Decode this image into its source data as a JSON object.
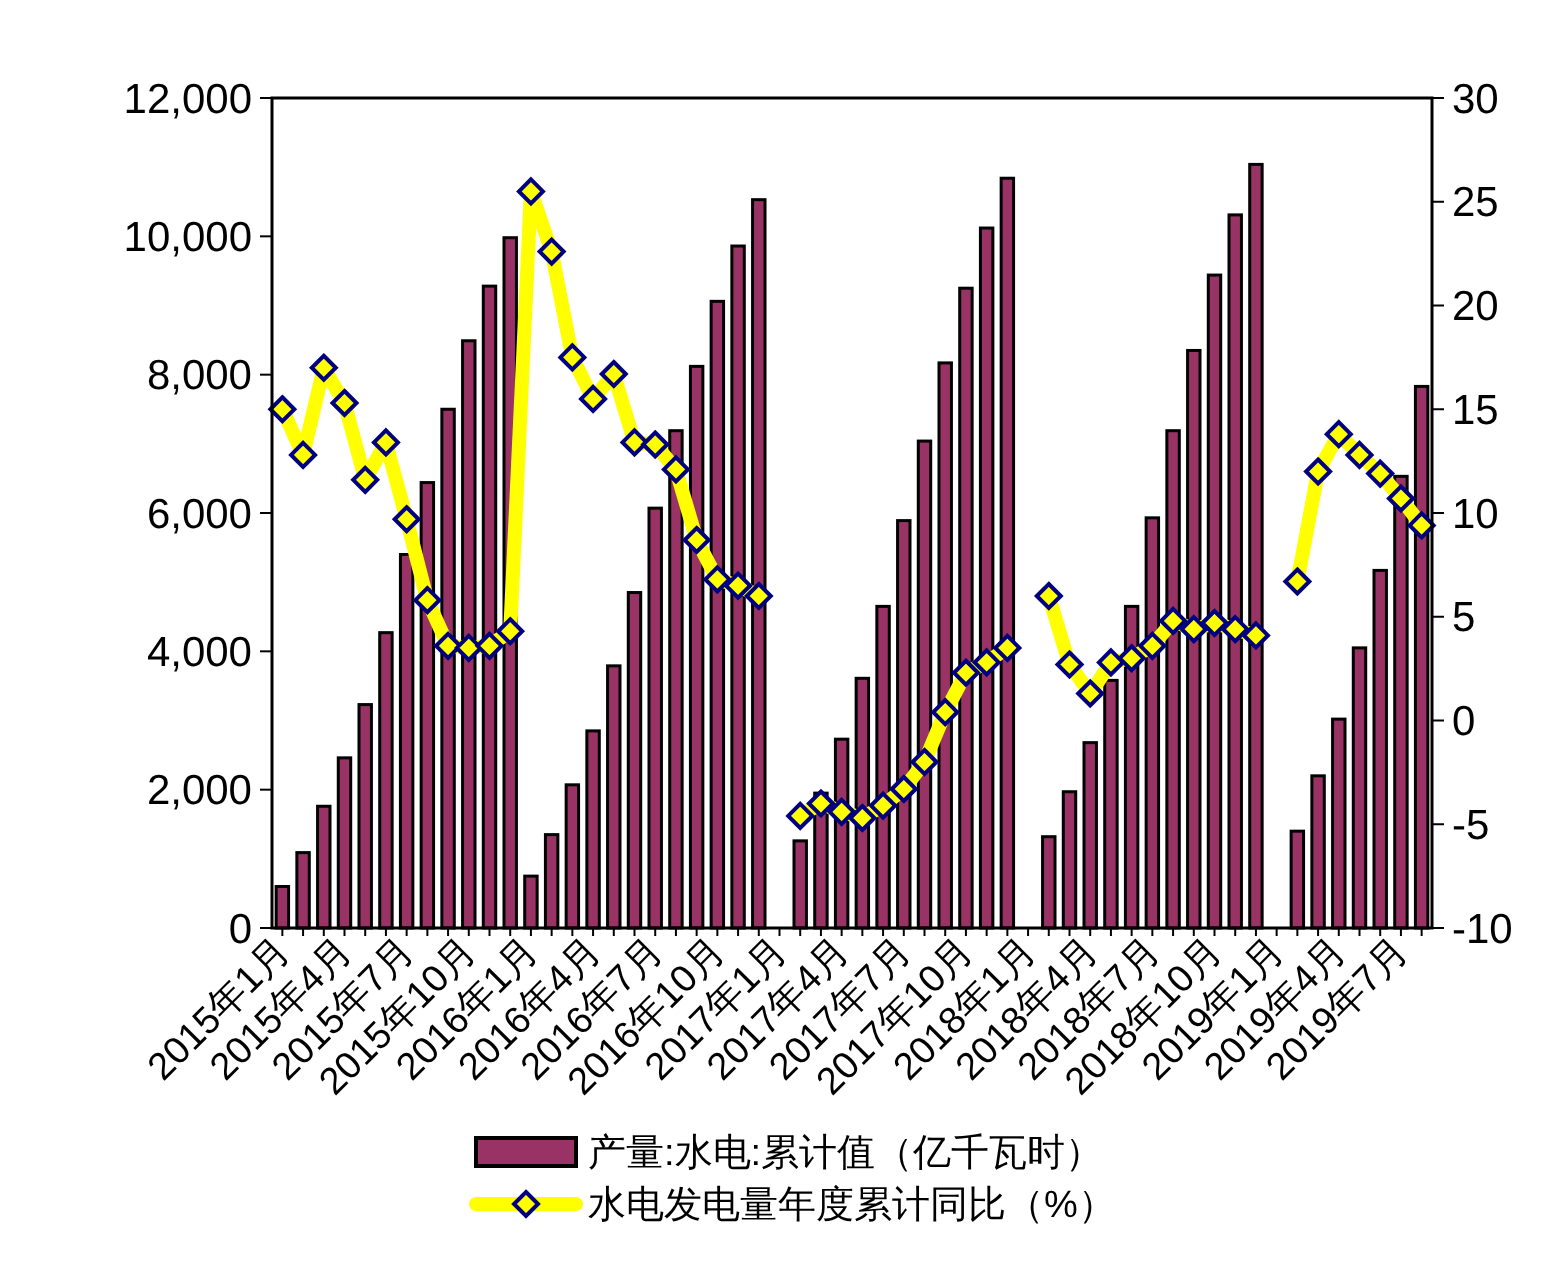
{
  "chart_data": {
    "type": "bar",
    "categories": [
      "2015年1月",
      null,
      null,
      "2015年4月",
      null,
      null,
      "2015年7月",
      null,
      null,
      "2015年10月",
      null,
      null,
      "2016年1月",
      null,
      null,
      "2016年4月",
      null,
      null,
      "2016年7月",
      null,
      null,
      "2016年10月",
      null,
      null,
      "2017年1月",
      null,
      null,
      "2017年4月",
      null,
      null,
      "2017年7月",
      null,
      null,
      "2017年10月",
      null,
      null,
      "2018年1月",
      null,
      null,
      "2018年4月",
      null,
      null,
      "2018年7月",
      null,
      null,
      "2018年10月",
      null,
      null,
      "2019年1月",
      null,
      null,
      "2019年4月",
      null,
      null,
      "2019年7月",
      null
    ],
    "series": [
      {
        "name": "产量:水电:累计值（亿千瓦时）",
        "color": "#993366",
        "values": [
          600,
          1090,
          1760,
          2460,
          3230,
          4270,
          5400,
          6440,
          7500,
          8490,
          9280,
          9980,
          750,
          1350,
          2070,
          2850,
          3790,
          4850,
          6070,
          7190,
          8120,
          9060,
          9860,
          10530,
          null,
          1260,
          1950,
          2730,
          3610,
          4650,
          5890,
          7040,
          8170,
          9250,
          10120,
          10840,
          null,
          1320,
          1970,
          2680,
          3580,
          4650,
          5930,
          7190,
          8350,
          9440,
          10310,
          11040,
          null,
          1400,
          2200,
          3020,
          4050,
          5170,
          6530,
          7830
        ]
      },
      {
        "name": "水电发电量年度累计同比（%）",
        "type": "line",
        "axis": "y2",
        "color": "#ffff00",
        "marker": "diamond",
        "values": [
          15.0,
          12.8,
          17.0,
          15.3,
          11.6,
          13.4,
          9.7,
          5.8,
          3.6,
          3.5,
          3.6,
          4.3,
          25.5,
          22.6,
          17.5,
          15.5,
          16.7,
          13.4,
          13.3,
          12.1,
          8.7,
          6.8,
          6.5,
          6.0,
          null,
          -4.6,
          -4.0,
          -4.4,
          -4.7,
          -4.1,
          -3.3,
          -2.0,
          0.4,
          2.3,
          2.8,
          3.5,
          null,
          6.0,
          2.7,
          1.3,
          2.8,
          3.0,
          3.6,
          4.8,
          4.4,
          4.7,
          4.4,
          4.1,
          null,
          6.7,
          12.0,
          13.8,
          12.8,
          11.9,
          10.7,
          9.4
        ]
      }
    ],
    "ylim": [
      0,
      12000
    ],
    "yticks": [
      {
        "value": 0,
        "label": "0"
      },
      {
        "value": 2000,
        "label": "2,000"
      },
      {
        "value": 4000,
        "label": "4,000"
      },
      {
        "value": 6000,
        "label": "6,000"
      },
      {
        "value": 8000,
        "label": "8,000"
      },
      {
        "value": 10000,
        "label": "10,000"
      },
      {
        "value": 12000,
        "label": "12,000"
      }
    ],
    "y2lim": [
      -10,
      30
    ],
    "y2ticks": [
      -10,
      -5,
      0,
      5,
      10,
      15,
      20,
      25,
      30
    ],
    "legend": "bottom"
  }
}
